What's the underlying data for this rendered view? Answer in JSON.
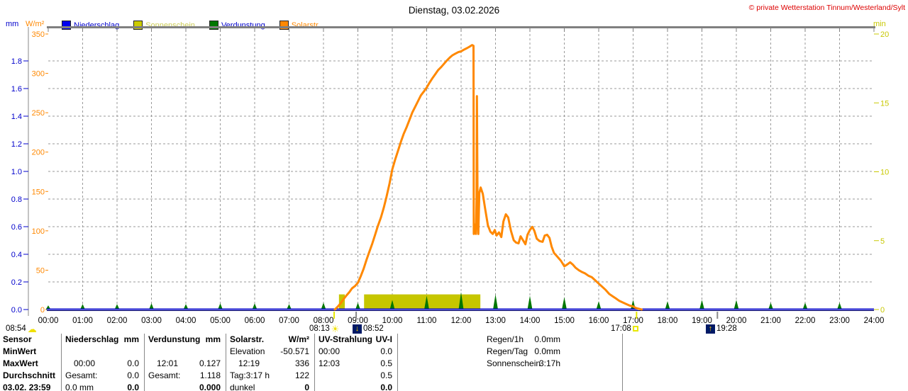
{
  "header": {
    "title": "Dienstag, 03.02.2026",
    "copyright": "© private Wetterstation Tinnum/Westerland/Sylt"
  },
  "axes": {
    "left_mm_unit": "mm",
    "left_wm2_unit": "W/m²",
    "right_min_unit": "min",
    "mm_ticks": [
      "0.0",
      "0.2",
      "0.4",
      "0.6",
      "0.8",
      "1.0",
      "1.2",
      "1.4",
      "1.6",
      "1.8"
    ],
    "wm2_ticks": [
      0,
      50,
      100,
      150,
      200,
      250,
      300,
      350
    ],
    "min_ticks": [
      0,
      5,
      10,
      15,
      20
    ],
    "hour_labels": [
      "00:00",
      "01:00",
      "02:00",
      "03:00",
      "04:00",
      "05:00",
      "06:00",
      "07:00",
      "08:00",
      "09:00",
      "10:00",
      "11:00",
      "12:00",
      "13:00",
      "14:00",
      "15:00",
      "16:00",
      "17:00",
      "18:00",
      "19:00",
      "20:00",
      "21:00",
      "22:00",
      "23:00",
      "24:00"
    ]
  },
  "legend": [
    {
      "label": "Niederschlag",
      "swatch": "#0000ee",
      "text_color": "#0000cc"
    },
    {
      "label": "Sonnenschein",
      "swatch": "#cccc00",
      "text_color": "#cccc55"
    },
    {
      "label": "Verdunstung",
      "swatch": "#007700",
      "text_color": "#0000cc"
    },
    {
      "label": "Solarstr.",
      "swatch": "#ff8800",
      "text_color": "#ff8800"
    }
  ],
  "chart_data": {
    "type": "line",
    "title": "Dienstag, 03.02.2026",
    "x_axis": {
      "unit": "time",
      "range_hours": [
        0,
        24
      ],
      "tick_every_hours": 1
    },
    "y_axes": [
      {
        "id": "mm",
        "label": "mm",
        "range": [
          0,
          2.0
        ],
        "side": "left",
        "color": "#0000cc"
      },
      {
        "id": "wm2",
        "label": "W/m²",
        "range": [
          0,
          350
        ],
        "side": "left",
        "color": "#ff8800"
      },
      {
        "id": "min",
        "label": "min",
        "range": [
          0,
          20
        ],
        "side": "right",
        "color": "#c8c800"
      }
    ],
    "grid": {
      "horizontal_at_mm_step": 0.2,
      "vertical_at_hour_step": 1,
      "style": "dashed"
    },
    "series": [
      {
        "name": "Solarstr.",
        "axis": "wm2",
        "render": "line",
        "color": "#ff8800",
        "max": {
          "time": "12:19",
          "value": 336
        },
        "points": [
          [
            8.33,
            0
          ],
          [
            8.42,
            4
          ],
          [
            8.5,
            8
          ],
          [
            8.58,
            13
          ],
          [
            8.67,
            18
          ],
          [
            8.75,
            22
          ],
          [
            8.83,
            27
          ],
          [
            8.92,
            30
          ],
          [
            9.0,
            34
          ],
          [
            9.08,
            42
          ],
          [
            9.17,
            52
          ],
          [
            9.25,
            63
          ],
          [
            9.33,
            73
          ],
          [
            9.42,
            84
          ],
          [
            9.5,
            95
          ],
          [
            9.58,
            106
          ],
          [
            9.67,
            117
          ],
          [
            9.75,
            129
          ],
          [
            9.83,
            143
          ],
          [
            9.92,
            160
          ],
          [
            10.0,
            178
          ],
          [
            10.08,
            190
          ],
          [
            10.17,
            202
          ],
          [
            10.25,
            213
          ],
          [
            10.33,
            223
          ],
          [
            10.42,
            232
          ],
          [
            10.5,
            241
          ],
          [
            10.58,
            250
          ],
          [
            10.67,
            258
          ],
          [
            10.75,
            265
          ],
          [
            10.83,
            272
          ],
          [
            10.92,
            277
          ],
          [
            11.0,
            282
          ],
          [
            11.08,
            288
          ],
          [
            11.17,
            294
          ],
          [
            11.25,
            299
          ],
          [
            11.33,
            304
          ],
          [
            11.42,
            308
          ],
          [
            11.5,
            312
          ],
          [
            11.58,
            316
          ],
          [
            11.67,
            320
          ],
          [
            11.75,
            323
          ],
          [
            11.83,
            325
          ],
          [
            11.92,
            327
          ],
          [
            12.0,
            328
          ],
          [
            12.08,
            330
          ],
          [
            12.17,
            332
          ],
          [
            12.25,
            334
          ],
          [
            12.32,
            336
          ],
          [
            12.36,
            335
          ],
          [
            12.37,
            96
          ],
          [
            12.4,
            108
          ],
          [
            12.43,
            96
          ],
          [
            12.45,
            140
          ],
          [
            12.46,
            271
          ],
          [
            12.48,
            120
          ],
          [
            12.5,
            96
          ],
          [
            12.53,
            148
          ],
          [
            12.57,
            155
          ],
          [
            12.63,
            147
          ],
          [
            12.7,
            128
          ],
          [
            12.78,
            107
          ],
          [
            12.85,
            99
          ],
          [
            12.92,
            96
          ],
          [
            12.98,
            101
          ],
          [
            13.03,
            94
          ],
          [
            13.1,
            98
          ],
          [
            13.17,
            92
          ],
          [
            13.23,
            112
          ],
          [
            13.3,
            121
          ],
          [
            13.37,
            117
          ],
          [
            13.45,
            100
          ],
          [
            13.53,
            88
          ],
          [
            13.6,
            85
          ],
          [
            13.67,
            84
          ],
          [
            13.73,
            93
          ],
          [
            13.8,
            88
          ],
          [
            13.87,
            83
          ],
          [
            13.93,
            95
          ],
          [
            14.0,
            101
          ],
          [
            14.07,
            105
          ],
          [
            14.13,
            100
          ],
          [
            14.2,
            90
          ],
          [
            14.28,
            87
          ],
          [
            14.37,
            86
          ],
          [
            14.43,
            94
          ],
          [
            14.5,
            95
          ],
          [
            14.57,
            91
          ],
          [
            14.63,
            80
          ],
          [
            14.7,
            72
          ],
          [
            14.8,
            67
          ],
          [
            14.9,
            62
          ],
          [
            15.0,
            55
          ],
          [
            15.08,
            57
          ],
          [
            15.17,
            60
          ],
          [
            15.25,
            57
          ],
          [
            15.33,
            53
          ],
          [
            15.42,
            50
          ],
          [
            15.5,
            48
          ],
          [
            15.6,
            46
          ],
          [
            15.7,
            43
          ],
          [
            15.8,
            41
          ],
          [
            15.9,
            37
          ],
          [
            16.0,
            33
          ],
          [
            16.1,
            29
          ],
          [
            16.2,
            25
          ],
          [
            16.3,
            20
          ],
          [
            16.4,
            17
          ],
          [
            16.5,
            14
          ],
          [
            16.6,
            11
          ],
          [
            16.7,
            9
          ],
          [
            16.8,
            7
          ],
          [
            16.9,
            5
          ],
          [
            17.0,
            4
          ],
          [
            17.08,
            2
          ],
          [
            17.17,
            1
          ],
          [
            17.25,
            0
          ]
        ]
      },
      {
        "name": "Sonnenschein",
        "axis": "min",
        "render": "band",
        "color": "#c6c600",
        "segments_hours": [
          [
            8.45,
            8.62
          ],
          [
            9.18,
            12.56
          ]
        ],
        "band_value_min": 1.1,
        "total": "3:17h"
      },
      {
        "name": "Verdunstung",
        "axis": "mm",
        "render": "spikes",
        "color": "#007700",
        "max": {
          "time": "12:01",
          "value": 0.127
        },
        "total_mm": 1.118,
        "spikes": [
          [
            0,
            0.03
          ],
          [
            1,
            0.04
          ],
          [
            2,
            0.04
          ],
          [
            3,
            0.045
          ],
          [
            4,
            0.04
          ],
          [
            5,
            0.045
          ],
          [
            6,
            0.045
          ],
          [
            7,
            0.04
          ],
          [
            8,
            0.05
          ],
          [
            9,
            0.05
          ],
          [
            10,
            0.07
          ],
          [
            11,
            0.1
          ],
          [
            12,
            0.127
          ],
          [
            13,
            0.11
          ],
          [
            14,
            0.1
          ],
          [
            15,
            0.09
          ],
          [
            16,
            0.06
          ],
          [
            17,
            0.07
          ],
          [
            18,
            0.06
          ],
          [
            19,
            0.07
          ],
          [
            20,
            0.07
          ],
          [
            21,
            0.05
          ],
          [
            22,
            0.05
          ],
          [
            23,
            0.05
          ]
        ]
      },
      {
        "name": "Niederschlag",
        "axis": "mm",
        "render": "line",
        "color": "#0000cc",
        "constant_value": 0,
        "total_mm": 0.0
      }
    ]
  },
  "astro_markers": [
    {
      "time": "08:54",
      "icon": "cloud-icon",
      "order": "text-icon"
    },
    {
      "time": "08:13",
      "icon": "sunrise-icon",
      "order": "text-icon"
    },
    {
      "time": "08:52",
      "icon": "moonset-icon",
      "order": "icon-text"
    },
    {
      "time": "17:08",
      "icon": "sunset-icon",
      "order": "text-icon"
    },
    {
      "time": "19:28",
      "icon": "moonrise-icon",
      "order": "icon-text"
    }
  ],
  "table": {
    "row_labels": [
      "Sensor",
      "MinWert",
      "MaxWert",
      "Durchschnitt",
      "03.02. 23:59"
    ],
    "sensor_columns": [
      {
        "header": "Niederschlag",
        "unit": "mm",
        "minwert": [
          "",
          ""
        ],
        "maxwert": [
          "00:00",
          "0.0"
        ],
        "durchschnitt": [
          "Gesamt:",
          "0.0"
        ],
        "last": [
          "0.0 mm",
          "0.0"
        ]
      },
      {
        "header": "Verdunstung",
        "unit": "mm",
        "minwert": [
          "",
          ""
        ],
        "maxwert": [
          "12:01",
          "0.127"
        ],
        "durchschnitt": [
          "Gesamt:",
          "1.118"
        ],
        "last": [
          "",
          "0.000"
        ]
      },
      {
        "header": "Solarstr.",
        "unit": "W/m²",
        "minwert": [
          "Elevation",
          "-50.571"
        ],
        "maxwert": [
          "12:19",
          "336"
        ],
        "durchschnitt": [
          "Tag:3:17 h",
          "122"
        ],
        "last": [
          "dunkel",
          "0"
        ]
      },
      {
        "header": "UV-Strahlung",
        "unit": "UV-I",
        "minwert": [
          "00:00",
          "0.0"
        ],
        "maxwert": [
          "12:03",
          "0.5"
        ],
        "durchschnitt": [
          "",
          "0.5"
        ],
        "last": [
          "",
          "0.0"
        ]
      }
    ],
    "summary": [
      [
        "Regen/1h",
        "0.0mm"
      ],
      [
        "Regen/Tag",
        "0.0mm"
      ],
      [
        "Sonnenschein",
        "3:17h"
      ]
    ]
  }
}
